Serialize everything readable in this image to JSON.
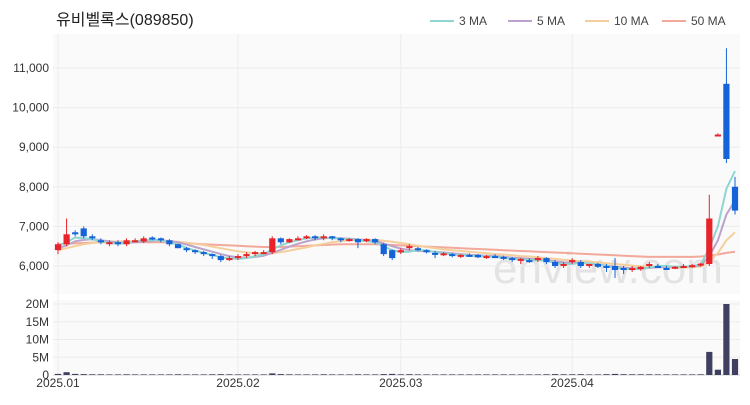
{
  "chart_data": {
    "type": "candlestick",
    "title": "유비벨록스(089850)",
    "watermark": "enview.com",
    "colors": {
      "up": "#e8242a",
      "down": "#1463d8",
      "volume": "#3f3f5f",
      "ma3": "#8fd6d0",
      "ma5": "#bba3cc",
      "ma10": "#f4cf9c",
      "ma50": "#f2a99b"
    },
    "legend": [
      {
        "label": "3 MA",
        "color": "#8fd6d0"
      },
      {
        "label": "5 MA",
        "color": "#bba3cc"
      },
      {
        "label": "10 MA",
        "color": "#f4cf9c"
      },
      {
        "label": "50 MA",
        "color": "#f2a99b"
      }
    ],
    "price_axis": {
      "ticks": [
        6000,
        7000,
        8000,
        9000,
        10000,
        11000
      ],
      "tick_labels": [
        "6,000",
        "7,000",
        "8,000",
        "9,000",
        "10,000",
        "11,000"
      ]
    },
    "volume_axis": {
      "ticks": [
        0,
        5000000,
        10000000,
        15000000,
        20000000
      ],
      "tick_labels": [
        "0",
        "5M",
        "10M",
        "15M",
        "20M"
      ]
    },
    "x_labels": [
      {
        "label": "2025.01",
        "index": 0
      },
      {
        "label": "2025.02",
        "index": 21
      },
      {
        "label": "2025.03",
        "index": 40
      },
      {
        "label": "2025.04",
        "index": 60
      }
    ],
    "candles": [
      [
        6400,
        6600,
        6300,
        6550
      ],
      [
        6550,
        7200,
        6500,
        6800
      ],
      [
        6850,
        6900,
        6750,
        6800
      ],
      [
        6950,
        7000,
        6700,
        6750
      ],
      [
        6750,
        6800,
        6650,
        6700
      ],
      [
        6650,
        6700,
        6550,
        6600
      ],
      [
        6550,
        6650,
        6500,
        6600
      ],
      [
        6600,
        6650,
        6500,
        6550
      ],
      [
        6550,
        6700,
        6500,
        6650
      ],
      [
        6650,
        6700,
        6600,
        6650
      ],
      [
        6620,
        6750,
        6580,
        6700
      ],
      [
        6720,
        6750,
        6650,
        6700
      ],
      [
        6700,
        6720,
        6600,
        6650
      ],
      [
        6650,
        6680,
        6500,
        6550
      ],
      [
        6550,
        6560,
        6450,
        6450
      ],
      [
        6450,
        6480,
        6350,
        6400
      ],
      [
        6400,
        6420,
        6300,
        6350
      ],
      [
        6350,
        6380,
        6250,
        6300
      ],
      [
        6300,
        6320,
        6180,
        6250
      ],
      [
        6250,
        6280,
        6100,
        6150
      ],
      [
        6150,
        6250,
        6130,
        6200
      ],
      [
        6200,
        6300,
        6150,
        6250
      ],
      [
        6250,
        6350,
        6200,
        6300
      ],
      [
        6300,
        6380,
        6250,
        6350
      ],
      [
        6320,
        6400,
        6300,
        6350
      ],
      [
        6350,
        6750,
        6300,
        6700
      ],
      [
        6700,
        6720,
        6550,
        6600
      ],
      [
        6600,
        6700,
        6580,
        6680
      ],
      [
        6680,
        6750,
        6650,
        6700
      ],
      [
        6700,
        6780,
        6680,
        6750
      ],
      [
        6750,
        6780,
        6650,
        6700
      ],
      [
        6700,
        6800,
        6650,
        6750
      ],
      [
        6750,
        6760,
        6650,
        6700
      ],
      [
        6700,
        6720,
        6600,
        6650
      ],
      [
        6650,
        6700,
        6620,
        6680
      ],
      [
        6680,
        6700,
        6450,
        6600
      ],
      [
        6650,
        6700,
        6600,
        6680
      ],
      [
        6680,
        6700,
        6550,
        6600
      ],
      [
        6550,
        6580,
        6250,
        6300
      ],
      [
        6400,
        6420,
        6150,
        6200
      ],
      [
        6350,
        6450,
        6300,
        6400
      ],
      [
        6450,
        6550,
        6400,
        6500
      ],
      [
        6450,
        6480,
        6380,
        6420
      ],
      [
        6400,
        6420,
        6320,
        6350
      ],
      [
        6330,
        6380,
        6200,
        6300
      ],
      [
        6300,
        6350,
        6250,
        6320
      ],
      [
        6300,
        6330,
        6220,
        6250
      ],
      [
        6250,
        6300,
        6200,
        6280
      ],
      [
        6280,
        6320,
        6230,
        6250
      ],
      [
        6280,
        6300,
        6200,
        6220
      ],
      [
        6230,
        6280,
        6180,
        6250
      ],
      [
        6250,
        6300,
        6200,
        6230
      ],
      [
        6230,
        6260,
        6150,
        6180
      ],
      [
        6200,
        6230,
        6100,
        6150
      ],
      [
        6150,
        6200,
        6050,
        6180
      ],
      [
        6150,
        6200,
        6080,
        6100
      ],
      [
        6180,
        6250,
        6100,
        6200
      ],
      [
        6200,
        6220,
        6050,
        6100
      ],
      [
        6100,
        6150,
        5950,
        6000
      ],
      [
        6050,
        6100,
        5950,
        6050
      ],
      [
        6100,
        6200,
        6050,
        6150
      ],
      [
        6100,
        6150,
        5950,
        6000
      ],
      [
        6000,
        6050,
        5950,
        6050
      ],
      [
        6050,
        6080,
        5950,
        5980
      ],
      [
        6000,
        6050,
        5850,
        5950
      ],
      [
        6000,
        6200,
        5700,
        5900
      ],
      [
        5950,
        6000,
        5800,
        5900
      ],
      [
        5900,
        6000,
        5850,
        5950
      ],
      [
        5920,
        6000,
        5880,
        5980
      ],
      [
        6000,
        6100,
        5950,
        6050
      ],
      [
        6000,
        6050,
        5950,
        5950
      ],
      [
        5950,
        6000,
        5900,
        5930
      ],
      [
        5950,
        6000,
        5920,
        5980
      ],
      [
        5980,
        6050,
        5950,
        6000
      ],
      [
        6000,
        6050,
        5960,
        6020
      ],
      [
        6020,
        6080,
        5980,
        6060
      ],
      [
        6050,
        7800,
        6000,
        7200
      ],
      [
        9300,
        9350,
        9300,
        9320
      ],
      [
        10600,
        11500,
        8600,
        8700
      ],
      [
        8000,
        8250,
        7300,
        7400
      ]
    ],
    "ma3": [
      6500,
      6600,
      6720,
      6700,
      6680,
      6620,
      6580,
      6560,
      6580,
      6620,
      6650,
      6660,
      6650,
      6600,
      6540,
      6460,
      6390,
      6330,
      6280,
      6220,
      6190,
      6180,
      6200,
      6250,
      6290,
      6420,
      6520,
      6600,
      6650,
      6700,
      6720,
      6720,
      6700,
      6690,
      6670,
      6650,
      6630,
      6600,
      6500,
      6400,
      6350,
      6360,
      6400,
      6400,
      6350,
      6320,
      6290,
      6280,
      6260,
      6250,
      6240,
      6230,
      6210,
      6180,
      6170,
      6150,
      6150,
      6130,
      6080,
      6040,
      6050,
      6080,
      6060,
      6040,
      6000,
      5960,
      5930,
      5920,
      5930,
      5960,
      6000,
      6000,
      5980,
      5980,
      6000,
      6030,
      6450,
      7000,
      7950,
      8400
    ],
    "ma5": [
      6450,
      6520,
      6620,
      6660,
      6680,
      6650,
      6620,
      6590,
      6580,
      6600,
      6620,
      6640,
      6650,
      6630,
      6600,
      6540,
      6480,
      6420,
      6360,
      6300,
      6250,
      6220,
      6210,
      6230,
      6260,
      6330,
      6410,
      6490,
      6560,
      6620,
      6670,
      6700,
      6710,
      6700,
      6690,
      6670,
      6650,
      6630,
      6570,
      6500,
      6440,
      6400,
      6380,
      6370,
      6360,
      6340,
      6320,
      6300,
      6280,
      6270,
      6260,
      6250,
      6230,
      6210,
      6200,
      6180,
      6170,
      6150,
      6120,
      6090,
      6080,
      6080,
      6060,
      6040,
      6010,
      5980,
      5960,
      5940,
      5940,
      5950,
      5970,
      5980,
      5980,
      5980,
      5990,
      6010,
      6250,
      6650,
      7300,
      7650
    ],
    "ma10": [
      6400,
      6450,
      6500,
      6550,
      6580,
      6600,
      6610,
      6620,
      6620,
      6630,
      6640,
      6640,
      6640,
      6630,
      6610,
      6590,
      6560,
      6530,
      6490,
      6450,
      6410,
      6370,
      6340,
      6320,
      6310,
      6320,
      6350,
      6390,
      6430,
      6470,
      6520,
      6560,
      6600,
      6630,
      6650,
      6660,
      6670,
      6660,
      6640,
      6610,
      6580,
      6550,
      6510,
      6480,
      6450,
      6420,
      6400,
      6380,
      6360,
      6340,
      6320,
      6300,
      6290,
      6270,
      6250,
      6240,
      6220,
      6200,
      6180,
      6160,
      6140,
      6120,
      6110,
      6090,
      6070,
      6050,
      6030,
      6010,
      5990,
      5980,
      5970,
      5960,
      5960,
      5960,
      5970,
      5990,
      6110,
      6330,
      6650,
      6850
    ],
    "ma50": [
      6550,
      6560,
      6570,
      6580,
      6590,
      6600,
      6600,
      6600,
      6600,
      6600,
      6600,
      6600,
      6600,
      6590,
      6580,
      6570,
      6560,
      6550,
      6540,
      6530,
      6520,
      6510,
      6500,
      6490,
      6480,
      6480,
      6480,
      6490,
      6500,
      6510,
      6520,
      6530,
      6540,
      6550,
      6550,
      6550,
      6550,
      6550,
      6540,
      6530,
      6520,
      6510,
      6500,
      6490,
      6480,
      6470,
      6460,
      6450,
      6440,
      6430,
      6420,
      6410,
      6400,
      6390,
      6380,
      6370,
      6360,
      6350,
      6340,
      6330,
      6320,
      6310,
      6300,
      6290,
      6280,
      6270,
      6260,
      6250,
      6240,
      6230,
      6230,
      6230,
      6230,
      6230,
      6230,
      6240,
      6260,
      6290,
      6330,
      6360
    ],
    "volume": [
      300000,
      800000,
      300000,
      250000,
      200000,
      200000,
      180000,
      180000,
      200000,
      180000,
      170000,
      170000,
      160000,
      180000,
      200000,
      180000,
      170000,
      180000,
      190000,
      220000,
      200000,
      180000,
      180000,
      170000,
      170000,
      450000,
      250000,
      200000,
      180000,
      180000,
      170000,
      200000,
      180000,
      170000,
      160000,
      200000,
      180000,
      180000,
      250000,
      300000,
      200000,
      220000,
      180000,
      170000,
      180000,
      170000,
      170000,
      160000,
      160000,
      160000,
      160000,
      160000,
      170000,
      180000,
      180000,
      170000,
      180000,
      190000,
      250000,
      200000,
      200000,
      220000,
      180000,
      180000,
      220000,
      300000,
      220000,
      200000,
      190000,
      200000,
      180000,
      170000,
      170000,
      170000,
      180000,
      190000,
      6500000,
      1500000,
      20000000,
      4500000
    ]
  }
}
